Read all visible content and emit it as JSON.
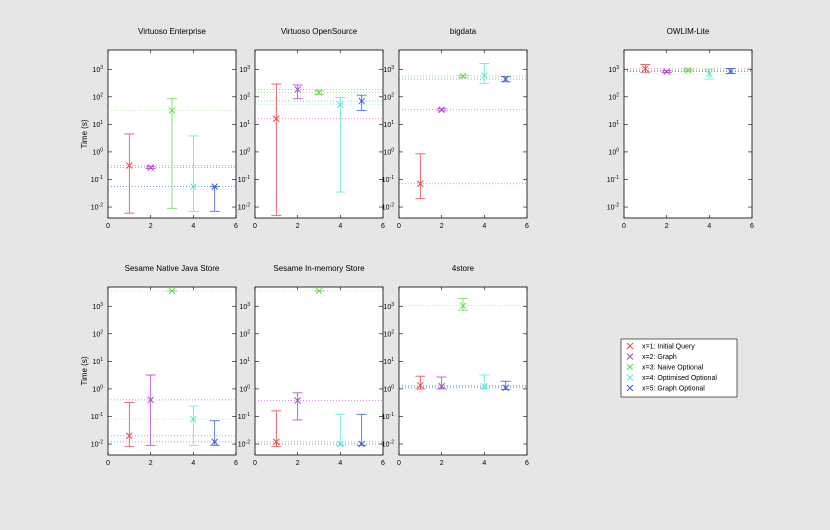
{
  "legend": {
    "entries": [
      {
        "label": "x=1: Initial Query",
        "color": "#e8454b"
      },
      {
        "label": "x=2: Graph",
        "color": "#b33fd0"
      },
      {
        "label": "x=3: Naive Optional",
        "color": "#67d84a"
      },
      {
        "label": "x=4: Optimised Optional",
        "color": "#5ce8d3"
      },
      {
        "label": "x=5: Graph Optional",
        "color": "#3f5fe0"
      }
    ]
  },
  "axes": {
    "ylabel": "Time (s)",
    "x_ticks": [
      0,
      2,
      4,
      6
    ],
    "xlim": [
      0,
      6
    ],
    "ylim": [
      0.004,
      5000
    ],
    "y_tick_base": "10",
    "y_tick_exponents": [
      "-2",
      "-1",
      "0",
      "1",
      "2",
      "3"
    ]
  },
  "chart_data": [
    {
      "type": "errorbar",
      "title": "Virtuoso Enterprise",
      "ylabel": "Time (s)",
      "points": [
        {
          "x": 1,
          "y": 0.32,
          "low": 0.006,
          "high": 4.5
        },
        {
          "x": 2,
          "y": 0.27,
          "low": 0.25,
          "high": 0.29
        },
        {
          "x": 3,
          "y": 32,
          "low": 0.009,
          "high": 85
        },
        {
          "x": 4,
          "y": 0.055,
          "low": 0.007,
          "high": 3.8
        },
        {
          "x": 5,
          "y": 0.055,
          "low": 0.007,
          "high": 0.055
        }
      ]
    },
    {
      "type": "errorbar",
      "title": "Virtuoso OpenSource",
      "ylabel": "",
      "points": [
        {
          "x": 1,
          "y": 16,
          "low": 0.005,
          "high": 290
        },
        {
          "x": 2,
          "y": 185,
          "low": 85,
          "high": 270
        },
        {
          "x": 3,
          "y": 145,
          "low": 125,
          "high": 165
        },
        {
          "x": 4,
          "y": 52,
          "low": 0.035,
          "high": 95
        },
        {
          "x": 5,
          "y": 70,
          "low": 32,
          "high": 115
        }
      ]
    },
    {
      "type": "errorbar",
      "title": "bigdata",
      "ylabel": "",
      "points": [
        {
          "x": 1,
          "y": 0.07,
          "low": 0.02,
          "high": 0.85
        },
        {
          "x": 2,
          "y": 34,
          "low": 31,
          "high": 37
        },
        {
          "x": 3,
          "y": 560,
          "low": 510,
          "high": 610
        },
        {
          "x": 4,
          "y": 590,
          "low": 310,
          "high": 1600
        },
        {
          "x": 5,
          "y": 440,
          "low": 350,
          "high": 540
        }
      ]
    },
    {
      "type": "errorbar",
      "title": "OWLIM-Lite",
      "ylabel": "",
      "points": [
        {
          "x": 1,
          "y": 1050,
          "low": 780,
          "high": 1480
        },
        {
          "x": 2,
          "y": 820,
          "low": 760,
          "high": 880
        },
        {
          "x": 3,
          "y": 930,
          "low": 860,
          "high": 1000
        },
        {
          "x": 4,
          "y": 680,
          "low": 440,
          "high": 1000
        },
        {
          "x": 5,
          "y": 860,
          "low": 700,
          "high": 1060
        }
      ]
    },
    {
      "type": "errorbar",
      "title": "Sesame Native Java Store",
      "ylabel": "Time (s)",
      "points": [
        {
          "x": 1,
          "y": 0.02,
          "low": 0.008,
          "high": 0.32
        },
        {
          "x": 2,
          "y": 0.4,
          "low": 0.009,
          "high": 3.2
        },
        {
          "x": 3,
          "y": 3600,
          "low": 3600,
          "high": 3600
        },
        {
          "x": 4,
          "y": 0.08,
          "low": 0.009,
          "high": 0.24
        },
        {
          "x": 5,
          "y": 0.012,
          "low": 0.009,
          "high": 0.07
        }
      ]
    },
    {
      "type": "errorbar",
      "title": "Sesame In-memory Store",
      "ylabel": "",
      "points": [
        {
          "x": 1,
          "y": 0.012,
          "low": 0.008,
          "high": 0.16
        },
        {
          "x": 2,
          "y": 0.38,
          "low": 0.075,
          "high": 0.72
        },
        {
          "x": 3,
          "y": 3600,
          "low": 3600,
          "high": 3600
        },
        {
          "x": 4,
          "y": 0.01,
          "low": 0.009,
          "high": 0.12
        },
        {
          "x": 5,
          "y": 0.01,
          "low": 0.009,
          "high": 0.12
        }
      ]
    },
    {
      "type": "errorbar",
      "title": "4store",
      "ylabel": "",
      "points": [
        {
          "x": 1,
          "y": 1.35,
          "low": 1.0,
          "high": 2.9
        },
        {
          "x": 2,
          "y": 1.25,
          "low": 1.0,
          "high": 2.7
        },
        {
          "x": 3,
          "y": 1050,
          "low": 720,
          "high": 1900
        },
        {
          "x": 4,
          "y": 1.25,
          "low": 1.0,
          "high": 3.2
        },
        {
          "x": 5,
          "y": 1.1,
          "low": 0.95,
          "high": 1.9
        }
      ]
    }
  ]
}
